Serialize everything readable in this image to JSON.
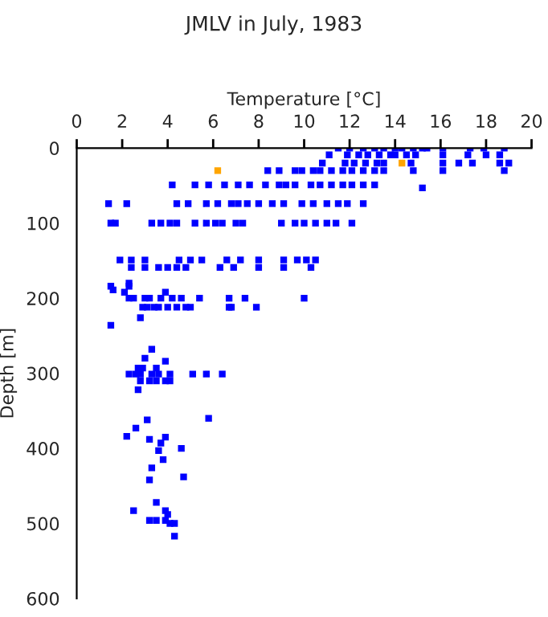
{
  "chart_data": {
    "type": "scatter",
    "title": "JMLV in July, 1983",
    "xlabel": "Temperature [°C]",
    "ylabel": "Depth [m]",
    "xlim": [
      0,
      20
    ],
    "xticks": [
      0,
      2,
      4,
      6,
      8,
      10,
      12,
      14,
      16,
      18,
      20
    ],
    "ylim": [
      600,
      0
    ],
    "yticks": [
      0,
      100,
      200,
      300,
      400,
      500,
      600
    ],
    "grid": false,
    "legend": false,
    "marker": "square",
    "series": [
      {
        "color": "#0000ff",
        "x": [
          11.5,
          12.0,
          12.6,
          13.1,
          13.5,
          14.0,
          14.3,
          14.8,
          15.2,
          15.4,
          16.1,
          17.3,
          17.9,
          18.8,
          11.1,
          11.9,
          12.4,
          12.8,
          13.3,
          13.8,
          14.0,
          14.5,
          14.9,
          16.1,
          17.2,
          18.0,
          18.6,
          10.8,
          11.8,
          12.2,
          12.7,
          13.2,
          13.5,
          14.7,
          16.1,
          16.8,
          17.4,
          18.6,
          19.0,
          8.4,
          8.9,
          9.6,
          9.9,
          10.4,
          10.7,
          11.2,
          11.7,
          12.1,
          12.6,
          13.1,
          13.5,
          14.8,
          16.1,
          18.8,
          4.2,
          5.2,
          5.8,
          6.5,
          7.1,
          7.6,
          8.3,
          8.9,
          9.2,
          9.6,
          10.3,
          10.7,
          11.2,
          11.7,
          12.1,
          12.6,
          13.1,
          15.2,
          1.4,
          2.2,
          4.4,
          4.9,
          5.7,
          6.2,
          6.8,
          7.1,
          7.5,
          8.0,
          8.6,
          9.1,
          9.9,
          10.4,
          11.0,
          11.5,
          11.9,
          12.6,
          1.5,
          1.7,
          3.3,
          3.7,
          4.1,
          4.4,
          5.2,
          5.7,
          6.1,
          6.4,
          7.0,
          7.3,
          9.0,
          9.6,
          10.0,
          10.5,
          11.0,
          11.4,
          12.1,
          1.9,
          2.4,
          3.0,
          4.5,
          5.0,
          5.5,
          6.6,
          7.2,
          8.0,
          9.1,
          9.7,
          10.1,
          10.5,
          2.4,
          3.0,
          3.6,
          4.0,
          4.4,
          4.8,
          6.3,
          6.9,
          8.0,
          9.1,
          10.3,
          1.5,
          2.3,
          2.3,
          1.6,
          2.1,
          3.9,
          2.3,
          2.5,
          3.0,
          3.2,
          3.7,
          4.2,
          4.6,
          5.4,
          6.7,
          7.4,
          10.0,
          2.9,
          3.1,
          3.4,
          3.6,
          4.0,
          4.4,
          4.8,
          5.0,
          6.7,
          6.8,
          7.9,
          2.8,
          1.5,
          3.3,
          3.0,
          3.9,
          2.7,
          2.9,
          3.5,
          2.3,
          2.6,
          2.8,
          3.3,
          3.6,
          4.1,
          5.1,
          5.7,
          6.4,
          2.8,
          3.2,
          3.5,
          3.9,
          4.1,
          2.7,
          5.8,
          3.1,
          2.6,
          2.2,
          3.2,
          3.9,
          3.7,
          4.6,
          3.6,
          3.8,
          3.3,
          4.7,
          3.2,
          3.5,
          2.5,
          3.9,
          4.0,
          3.2,
          3.5,
          3.9,
          4.1,
          4.3,
          4.3
        ],
        "values": [
          0,
          0,
          0,
          0,
          0,
          0,
          0,
          0,
          0,
          0,
          0,
          0,
          0,
          0,
          9,
          9,
          9,
          9,
          9,
          9,
          9,
          9,
          9,
          9,
          9,
          9,
          9,
          20,
          20,
          20,
          20,
          20,
          20,
          20,
          20,
          20,
          20,
          20,
          20,
          30,
          30,
          30,
          30,
          30,
          30,
          30,
          30,
          30,
          30,
          30,
          30,
          30,
          30,
          30,
          49,
          49,
          49,
          49,
          49,
          49,
          49,
          49,
          49,
          49,
          49,
          49,
          49,
          49,
          49,
          49,
          49,
          53,
          74,
          74,
          74,
          74,
          74,
          74,
          74,
          74,
          74,
          74,
          74,
          74,
          74,
          74,
          74,
          74,
          74,
          74,
          100,
          100,
          100,
          100,
          100,
          100,
          100,
          100,
          100,
          100,
          100,
          100,
          100,
          100,
          100,
          100,
          100,
          100,
          100,
          149,
          149,
          149,
          149,
          149,
          149,
          149,
          149,
          149,
          149,
          149,
          149,
          149,
          159,
          159,
          159,
          159,
          159,
          159,
          159,
          159,
          159,
          159,
          159,
          184,
          184,
          180,
          189,
          192,
          192,
          200,
          200,
          200,
          200,
          200,
          200,
          200,
          200,
          200,
          200,
          200,
          212,
          212,
          212,
          212,
          212,
          212,
          212,
          212,
          212,
          212,
          212,
          226,
          236,
          268,
          280,
          284,
          293,
          293,
          293,
          301,
          301,
          301,
          301,
          301,
          301,
          301,
          301,
          301,
          310,
          310,
          310,
          310,
          310,
          322,
          360,
          362,
          373,
          384,
          388,
          385,
          393,
          400,
          403,
          415,
          426,
          438,
          442,
          472,
          483,
          483,
          488,
          496,
          496,
          496,
          500,
          500,
          517
        ]
      },
      {
        "color": "#ffa500",
        "x": [
          6.2,
          14.3
        ],
        "values": [
          30,
          20
        ]
      }
    ]
  }
}
